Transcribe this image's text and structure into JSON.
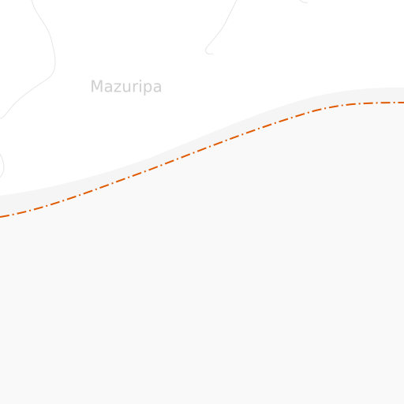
{
  "map": {
    "place_label": "Mazuripa"
  }
}
